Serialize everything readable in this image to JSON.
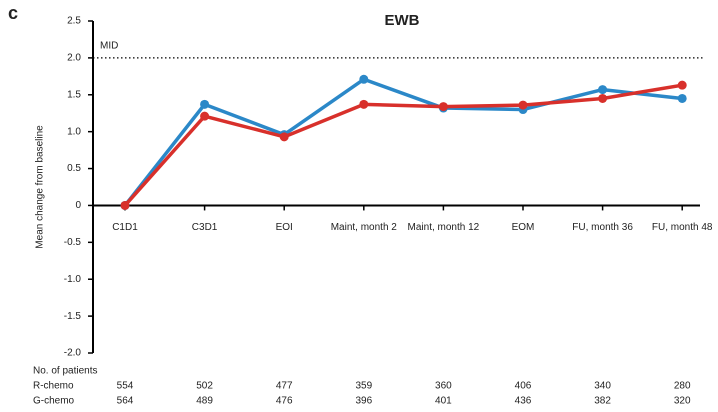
{
  "chart_data": {
    "type": "line",
    "panel": "c",
    "title": "EWB",
    "ylabel": "Mean change from baseline",
    "categories": [
      "C1D1",
      "C3D1",
      "EOI",
      "Maint, month 2",
      "Maint, month 12",
      "EOM",
      "FU, month 36",
      "FU, month 48"
    ],
    "series": [
      {
        "color": "#2b88c8",
        "values": [
          0,
          1.37,
          0.96,
          1.71,
          1.32,
          1.3,
          1.57,
          1.45
        ]
      },
      {
        "color": "#d8302b",
        "values": [
          0,
          1.21,
          0.93,
          1.37,
          1.34,
          1.36,
          1.45,
          1.63
        ]
      }
    ],
    "ylim": [
      -2.0,
      2.5
    ],
    "yticks": [
      {
        "value": -2.0,
        "label": "-2.0"
      },
      -1.5,
      {
        "value": -1.0,
        "label": "-1.0"
      },
      -0.5,
      0,
      0.5,
      {
        "value": 1.0,
        "label": "1.0"
      },
      1.5,
      {
        "value": 2.0,
        "label": "2.0"
      },
      2.5
    ],
    "reference_line": {
      "label": "MID",
      "value": 2.0
    },
    "patients_table": {
      "title": "No. of patients",
      "rows": [
        {
          "label": "R-chemo",
          "values": [
            554,
            502,
            477,
            359,
            360,
            406,
            340,
            280
          ]
        },
        {
          "label": "G-chemo",
          "values": [
            564,
            489,
            476,
            396,
            401,
            436,
            382,
            320
          ]
        }
      ]
    }
  }
}
